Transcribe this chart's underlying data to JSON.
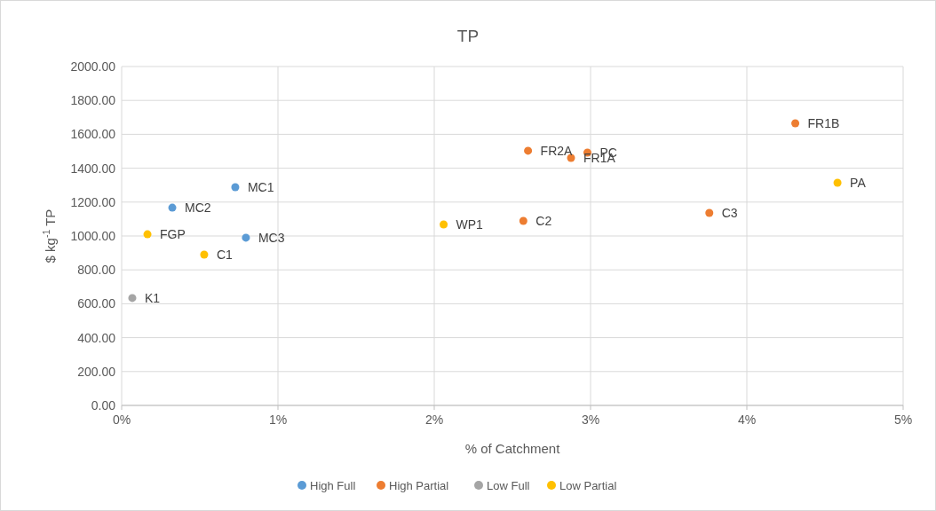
{
  "chart_data": {
    "type": "scatter",
    "title": "TP",
    "xlabel": "% of Catchment",
    "ylabel": "$ kg$^{-1}$ TP",
    "series": [
      {
        "name": "High Full",
        "color": "#5b9bd5",
        "x": [
          0.727,
          0.324,
          0.795
        ],
        "values": [
          1288,
          1167,
          990
        ]
      },
      {
        "name": "High Partial",
        "color": "#ed7d31",
        "x": [
          2.6,
          2.98,
          2.875,
          2.57,
          3.76,
          4.31
        ],
        "values": [
          1503,
          1492,
          1461,
          1089,
          1136,
          1665
        ]
      },
      {
        "name": "Low Full",
        "color": "#a5a5a5",
        "x": [
          0.068
        ],
        "values": [
          634
        ]
      },
      {
        "name": "Low Partial",
        "color": "#ffc000",
        "x": [
          0.165,
          0.528,
          2.06,
          4.58
        ],
        "values": [
          1010,
          890,
          1068,
          1314
        ]
      }
    ],
    "annotations": [
      {
        "text": "MC1",
        "x": 0.727,
        "y": 1288
      },
      {
        "text": "MC2",
        "x": 0.324,
        "y": 1167
      },
      {
        "text": "MC3",
        "x": 0.795,
        "y": 990
      },
      {
        "text": "FR2A",
        "x": 2.6,
        "y": 1503
      },
      {
        "text": "PC",
        "x": 2.98,
        "y": 1492
      },
      {
        "text": "FR1A",
        "x": 2.875,
        "y": 1461
      },
      {
        "text": "C2",
        "x": 2.57,
        "y": 1089
      },
      {
        "text": "C3",
        "x": 3.76,
        "y": 1136
      },
      {
        "text": "FR1B",
        "x": 4.31,
        "y": 1665
      },
      {
        "text": "K1",
        "x": 0.068,
        "y": 634
      },
      {
        "text": "FGP",
        "x": 0.165,
        "y": 1010
      },
      {
        "text": "C1",
        "x": 0.528,
        "y": 890
      },
      {
        "text": "WP1",
        "x": 2.06,
        "y": 1068
      },
      {
        "text": "PA",
        "x": 4.58,
        "y": 1314
      }
    ],
    "xlim": [
      0,
      5
    ],
    "xticks": [
      {
        "value": 0,
        "label": "0%"
      },
      {
        "value": 1,
        "label": "1%"
      },
      {
        "value": 2,
        "label": "2%"
      },
      {
        "value": 3,
        "label": "3%"
      },
      {
        "value": 4,
        "label": "4%"
      },
      {
        "value": 5,
        "label": "5%"
      }
    ],
    "ylim": [
      0,
      2000
    ],
    "yticks": [
      {
        "value": 0,
        "label": "0.00"
      },
      {
        "value": 200,
        "label": "200.00"
      },
      {
        "value": 400,
        "label": "400.00"
      },
      {
        "value": 600,
        "label": "600.00"
      },
      {
        "value": 800,
        "label": "800.00"
      },
      {
        "value": 1000,
        "label": "1000.00"
      },
      {
        "value": 1200,
        "label": "1200.00"
      },
      {
        "value": 1400,
        "label": "1400.00"
      },
      {
        "value": 1600,
        "label": "1600.00"
      },
      {
        "value": 1800,
        "label": "1800.00"
      },
      {
        "value": 2000,
        "label": "2000.00"
      }
    ],
    "grid": true,
    "legend": "bottom",
    "marker": "circle"
  }
}
